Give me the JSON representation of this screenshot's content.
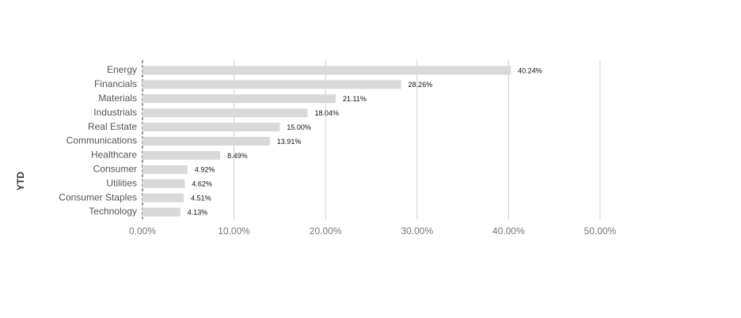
{
  "chart_data": {
    "type": "hbar",
    "y_label": "YTD",
    "categories": [
      "Energy",
      "Financials",
      "Materials",
      "Industrials",
      "Real Estate",
      "Communications",
      "Healthcare",
      "Consumer",
      "Utilities",
      "Consumer Staples",
      "Technology"
    ],
    "values": [
      40.24,
      28.26,
      21.11,
      18.04,
      15.0,
      13.91,
      8.49,
      4.92,
      4.62,
      4.51,
      4.13
    ],
    "value_labels": [
      "40.24%",
      "28.26%",
      "21.11%",
      "18.04%",
      "15.00%",
      "13.91%",
      "8.49%",
      "4.92%",
      "4.62%",
      "4.51%",
      "4.13%"
    ],
    "color": "#d9d9d9",
    "xlim": [
      0,
      50
    ],
    "xticks": [
      {
        "value": 0,
        "label": "0.00%"
      },
      {
        "value": 10,
        "label": "10.00%"
      },
      {
        "value": 20,
        "label": "20.00%"
      },
      {
        "value": 30,
        "label": "30.00%"
      },
      {
        "value": 40,
        "label": "40.00%"
      },
      {
        "value": 50,
        "label": "50.00%"
      }
    ],
    "grid": true
  }
}
